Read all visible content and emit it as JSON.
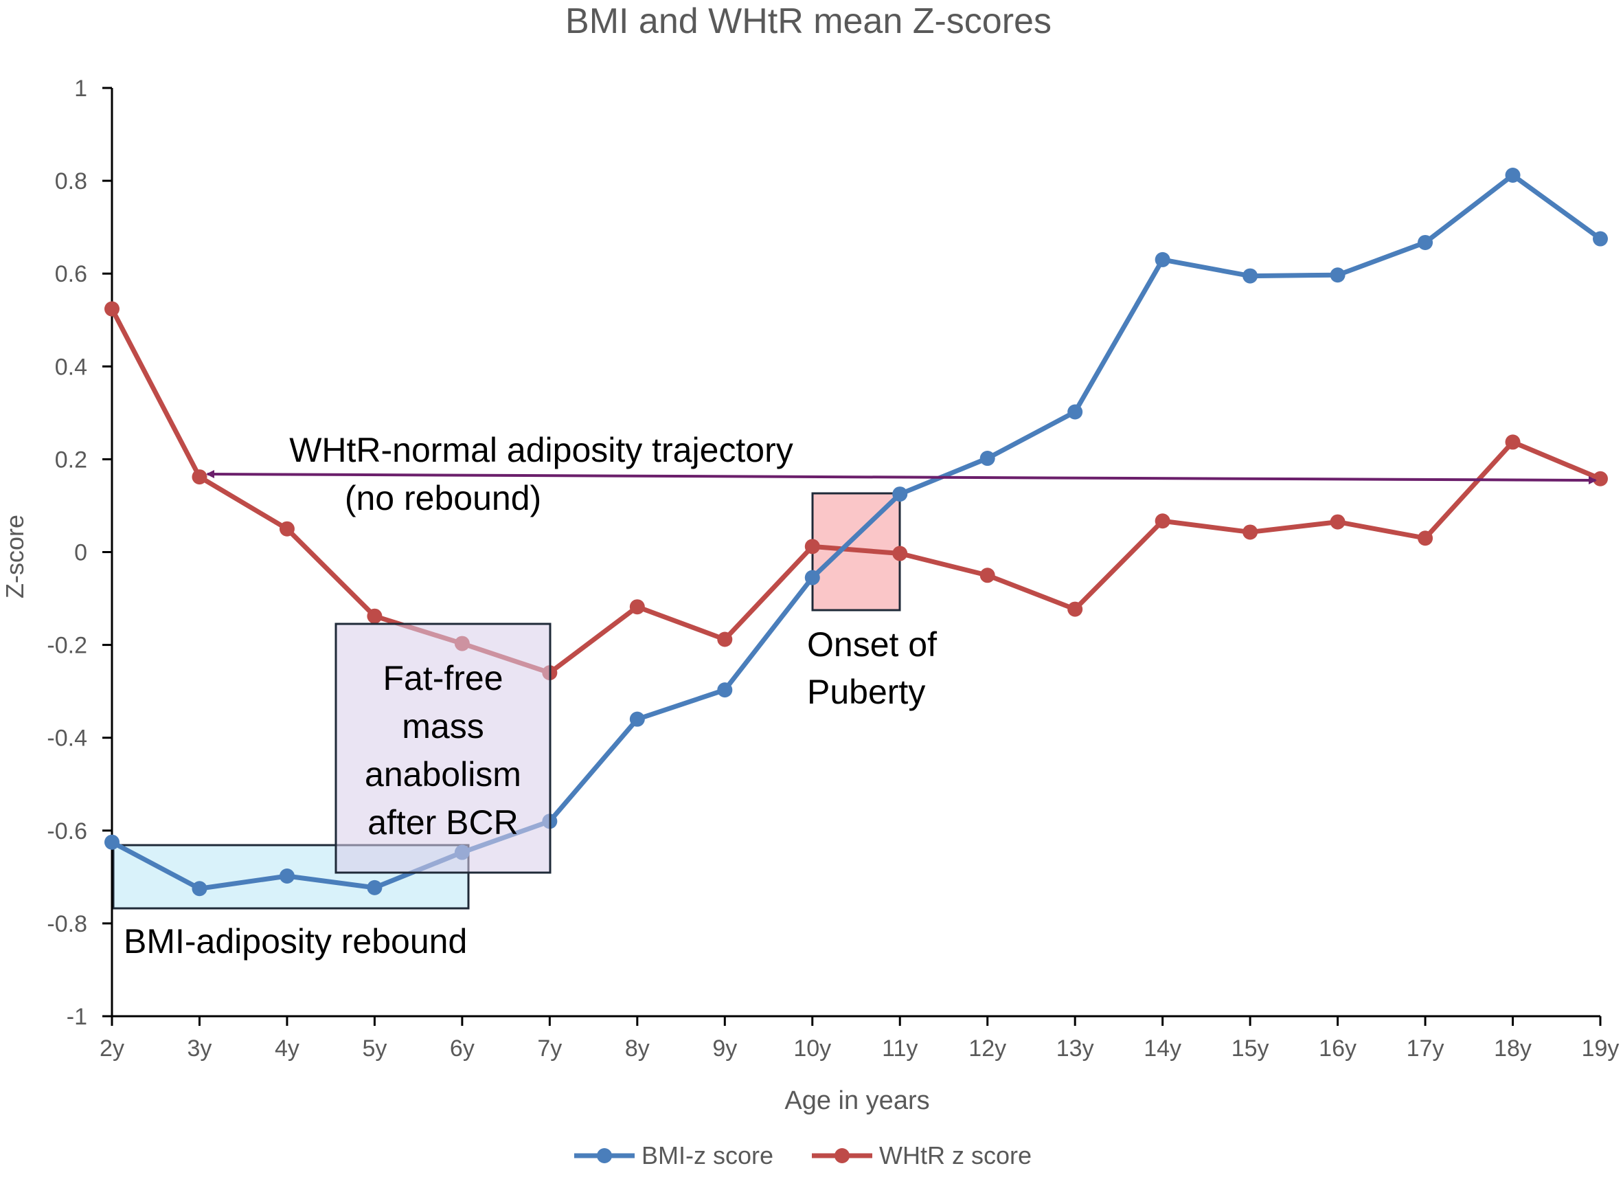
{
  "chart_data": {
    "type": "line",
    "title": "BMI and WHtR mean Z-scores",
    "xlabel": "Age in years",
    "ylabel": "Z-score",
    "ylim": [
      -1,
      1
    ],
    "yticks": [
      "1",
      "0.8",
      "0.6",
      "0.4",
      "0.2",
      "0",
      "-0.2",
      "-0.4",
      "-0.6",
      "-0.8",
      "-1"
    ],
    "ytick_values": [
      1,
      0.8,
      0.6,
      0.4,
      0.2,
      0,
      -0.2,
      -0.4,
      -0.6,
      -0.8,
      -1
    ],
    "categories": [
      "2y",
      "3y",
      "4y",
      "5y",
      "6y",
      "7y",
      "8y",
      "9y",
      "10y",
      "11y",
      "12y",
      "13y",
      "14y",
      "15y",
      "16y",
      "17y",
      "18y",
      "19y"
    ],
    "grid": false,
    "legend_position": "bottom",
    "series": [
      {
        "name": "BMI-z score",
        "color": "#4a7ebb",
        "values": [
          -0.625,
          -0.725,
          -0.698,
          -0.723,
          -0.647,
          -0.58,
          -0.36,
          -0.297,
          -0.055,
          0.125,
          0.202,
          0.302,
          0.63,
          0.595,
          0.597,
          0.667,
          0.812,
          0.675
        ]
      },
      {
        "name": "WHtR z score",
        "color": "#be4b48",
        "values": [
          0.524,
          0.162,
          0.05,
          -0.138,
          -0.197,
          -0.26,
          -0.118,
          -0.188,
          0.012,
          -0.003,
          -0.05,
          -0.123,
          0.067,
          0.043,
          0.065,
          0.03,
          0.237,
          0.158
        ]
      }
    ],
    "annotations": {
      "trajectory_line1": "WHtR-normal adiposity trajectory",
      "trajectory_line2": "(no rebound)",
      "ffm_line1": "Fat-free",
      "ffm_line2": "mass",
      "ffm_line3": "anabolism",
      "ffm_line4": "after BCR",
      "puberty_line1": "Onset of",
      "puberty_line2": "Puberty",
      "rebound": "BMI-adiposity rebound"
    },
    "colors": {
      "arrow": "#6b1f6b",
      "rebound_box": "#bfe9f7",
      "ffm_box": "#ddd3ec",
      "puberty_box": "#f7a7aa",
      "axis": "#000000",
      "text": "#595959"
    }
  }
}
